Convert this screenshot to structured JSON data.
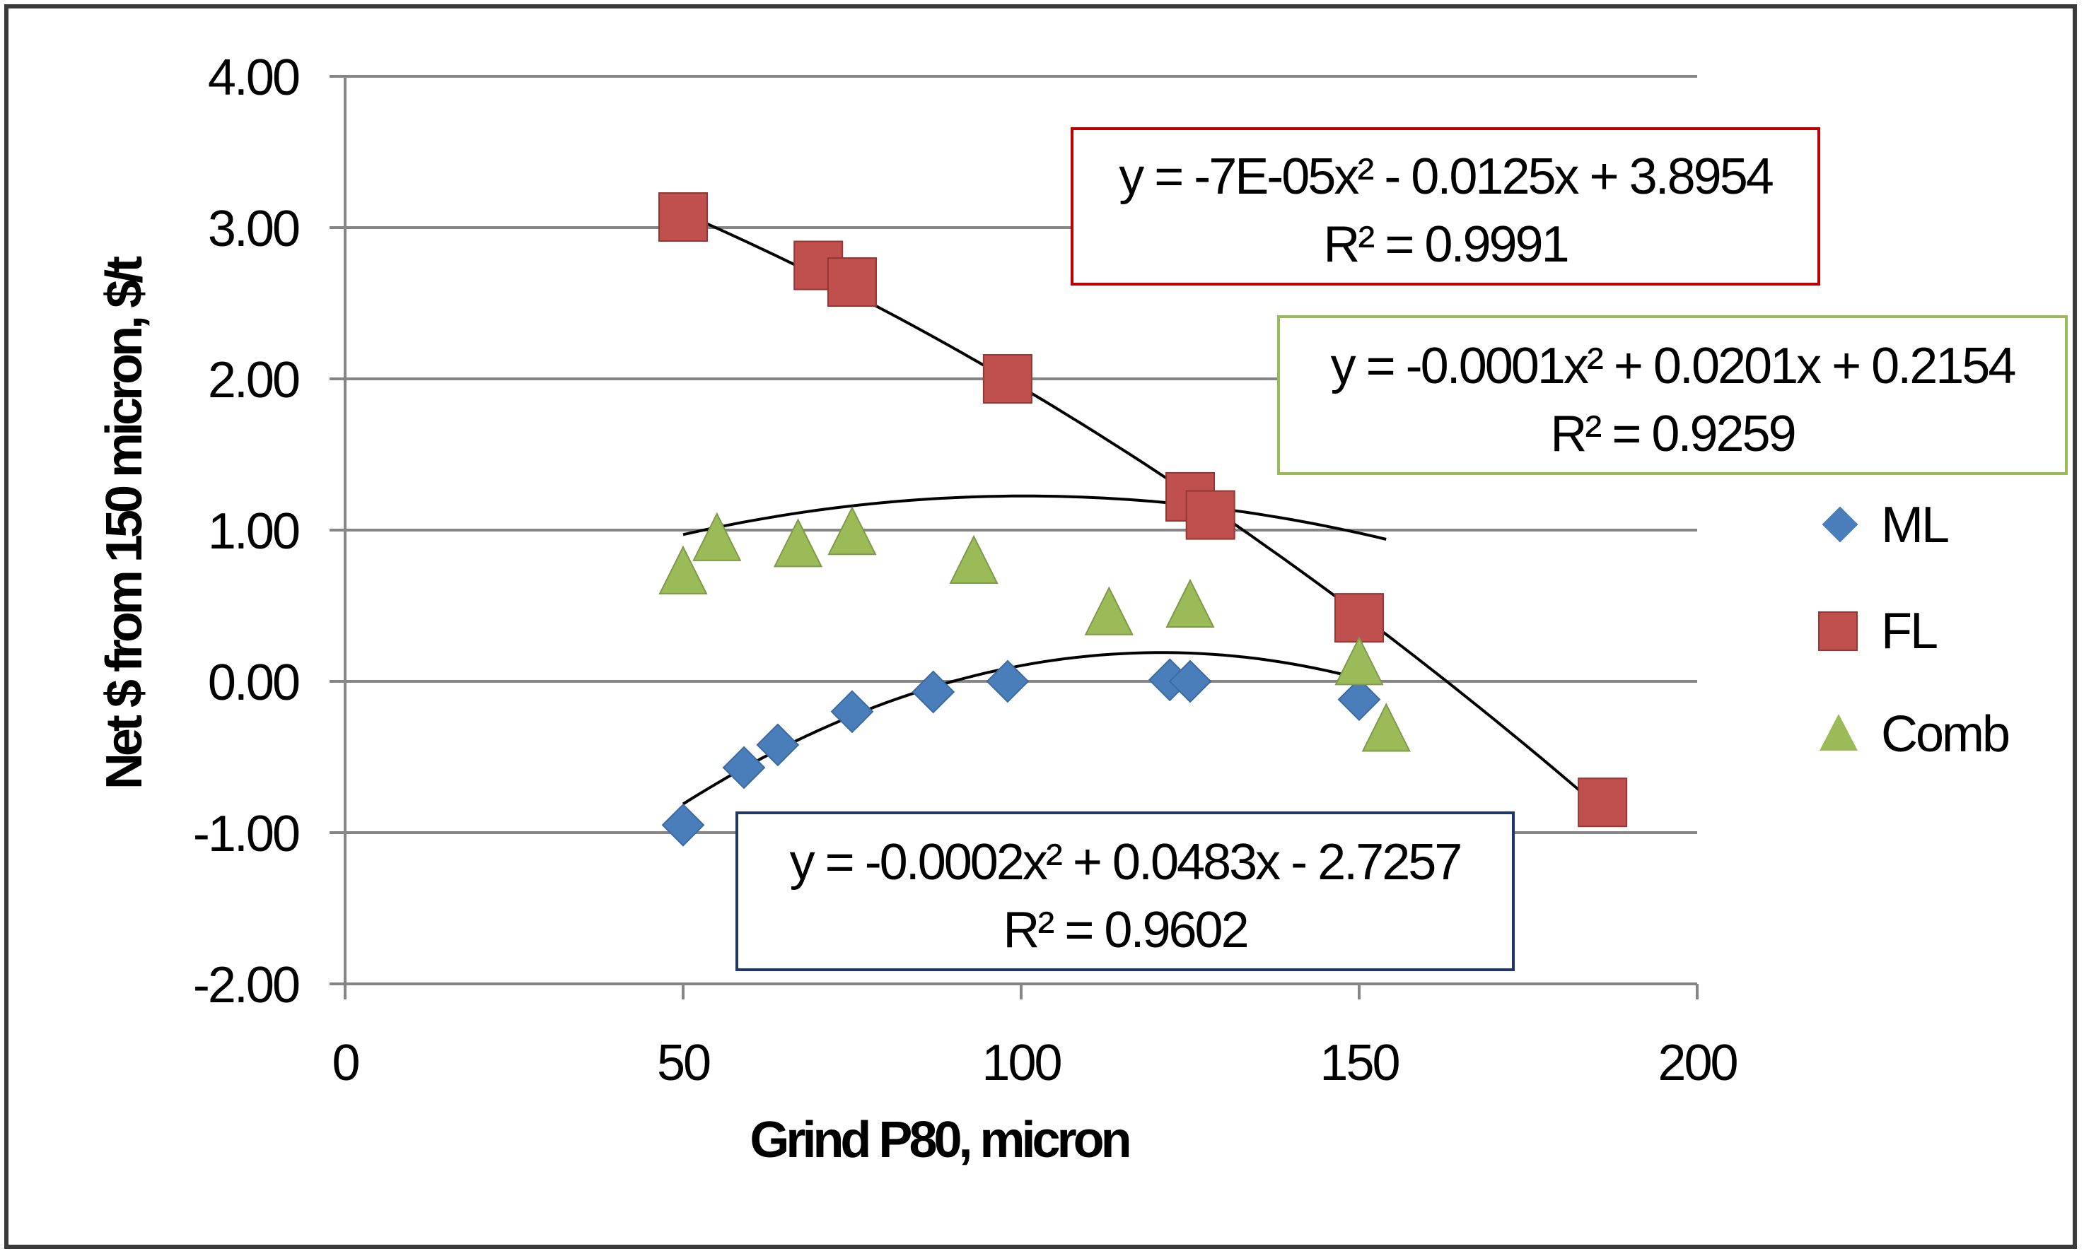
{
  "chart_data": {
    "type": "scatter",
    "title": "",
    "xlabel": "Grind P80, micron",
    "ylabel": "Net $ from 150 micron, $/t",
    "xlim": [
      0,
      200
    ],
    "ylim": [
      -2,
      4
    ],
    "x_ticks": [
      0,
      50,
      100,
      150,
      200
    ],
    "x_tick_labels": [
      "0",
      "50",
      "100",
      "150",
      "200"
    ],
    "y_ticks": [
      -2,
      -1,
      0,
      1,
      2,
      3,
      4
    ],
    "y_tick_labels": [
      "-2.00",
      "-1.00",
      "0.00",
      "1.00",
      "2.00",
      "3.00",
      "4.00"
    ],
    "grid": "horizontal",
    "legend_position": "right",
    "series": [
      {
        "name": "ML",
        "marker": "diamond",
        "color": "#4a7ebb",
        "points": [
          [
            50,
            -0.95
          ],
          [
            59,
            -0.57
          ],
          [
            64,
            -0.42
          ],
          [
            75,
            -0.2
          ],
          [
            87,
            -0.07
          ],
          [
            98,
            0.0
          ],
          [
            122,
            0.01
          ],
          [
            125,
            0.0
          ],
          [
            150,
            -0.12
          ]
        ],
        "trendline": {
          "type": "polynomial",
          "order": 2,
          "coefficients": [
            -0.0002,
            0.0483,
            -2.7257
          ],
          "x_range": [
            50,
            150
          ],
          "equation": "y = -0.0002x² + 0.0483x - 2.7257",
          "r2": "R² = 0.9602"
        }
      },
      {
        "name": "FL",
        "marker": "square",
        "color": "#c0504d",
        "points": [
          [
            50,
            3.07
          ],
          [
            70,
            2.75
          ],
          [
            75,
            2.64
          ],
          [
            98,
            2.0
          ],
          [
            125,
            1.22
          ],
          [
            128,
            1.1
          ],
          [
            150,
            0.42
          ],
          [
            186,
            -0.8
          ]
        ],
        "trendline": {
          "type": "polynomial",
          "order": 2,
          "coefficients": [
            -7e-05,
            -0.0125,
            3.8954
          ],
          "x_range": [
            50,
            186
          ],
          "equation": "y = -7E-05x² - 0.0125x + 3.8954",
          "r2": "R² = 0.9991"
        }
      },
      {
        "name": "Comb",
        "marker": "triangle",
        "color": "#9bbb59",
        "points": [
          [
            50,
            0.72
          ],
          [
            55,
            0.94
          ],
          [
            67,
            0.9
          ],
          [
            75,
            0.98
          ],
          [
            93,
            0.79
          ],
          [
            113,
            0.45
          ],
          [
            125,
            0.5
          ],
          [
            150,
            0.12
          ],
          [
            154,
            -0.32
          ]
        ],
        "trendline": {
          "type": "polynomial",
          "order": 2,
          "coefficients": [
            -0.0001,
            0.0201,
            0.2154
          ],
          "x_range": [
            50,
            154
          ],
          "equation": "y = -0.0001x² + 0.0201x + 0.2154",
          "r2": "R² = 0.9259"
        }
      }
    ],
    "colors": {
      "axis": "#868686",
      "grid": "#868686",
      "trendline": "#000000",
      "fl_box_border": "#c00000",
      "comb_box_border": "#9bbb59",
      "ml_box_border": "#1f3864"
    }
  }
}
